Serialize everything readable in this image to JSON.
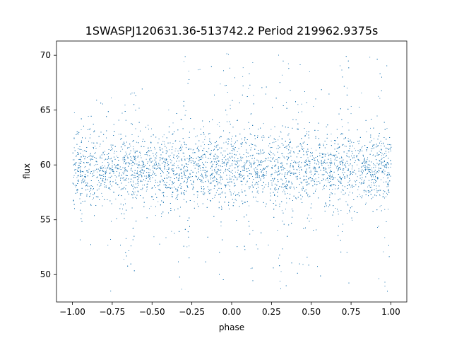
{
  "chart_data": {
    "type": "scatter",
    "title": "1SWASPJ120631.36-513742.2 Period 219962.9375s",
    "xlabel": "phase",
    "ylabel": "flux",
    "xlim": [
      -1.1,
      1.1
    ],
    "ylim": [
      47.5,
      71.3
    ],
    "xticks": [
      -1.0,
      -0.75,
      -0.5,
      -0.25,
      0.0,
      0.25,
      0.5,
      0.75,
      1.0
    ],
    "xtick_labels": [
      "−1.00",
      "−0.75",
      "−0.50",
      "−0.25",
      "0.00",
      "0.25",
      "0.50",
      "0.75",
      "1.00"
    ],
    "yticks": [
      50,
      55,
      60,
      65,
      70
    ],
    "ytick_labels": [
      "50",
      "55",
      "60",
      "65",
      "70"
    ],
    "grid": false,
    "legend": "none",
    "series": [
      {
        "color": "#1f77b4",
        "x_range": [
          -1.0,
          1.0
        ],
        "y_range": [
          48.5,
          70.3
        ],
        "core_mean": 59.7,
        "core_spread": 1.6,
        "dip_phases": [
          -0.65,
          -0.3,
          -0.05,
          0.1,
          0.33,
          0.45,
          0.7,
          0.95
        ]
      }
    ]
  }
}
